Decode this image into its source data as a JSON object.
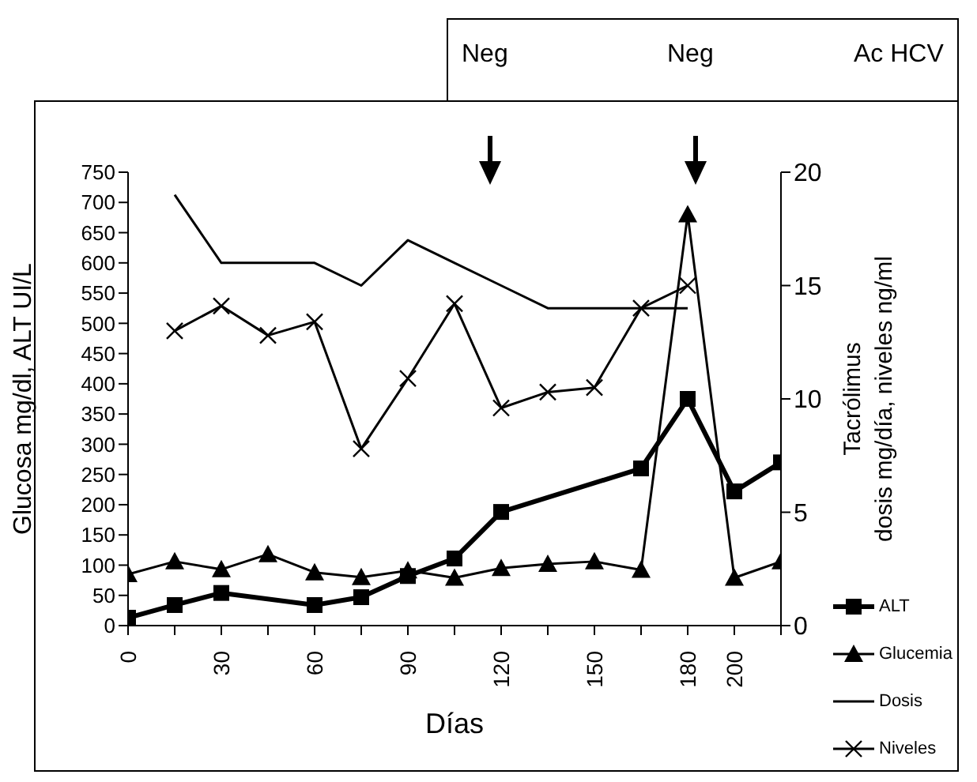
{
  "chart_data": {
    "type": "line",
    "xlabel": "Días",
    "ylabel": "Glucosa mg/dl, ALT UI/L",
    "y2label": "Tacrólimus\ndosis mg/día, niveles ng/ml",
    "categories": [
      "0",
      null,
      "30",
      null,
      "60",
      null,
      "90",
      null,
      "120",
      null,
      "150",
      null,
      "180",
      "200",
      null
    ],
    "series": [
      {
        "name": "ALT",
        "color": "#000000",
        "marker": "square",
        "values": [
          13,
          34,
          54,
          null,
          34,
          47,
          82,
          111,
          188,
          null,
          null,
          260,
          375,
          222,
          270
        ]
      },
      {
        "name": "Glucemia",
        "color": "#000000",
        "marker": "triangle",
        "values": [
          85,
          106,
          93,
          118,
          88,
          80,
          91,
          79,
          95,
          102,
          106,
          92,
          680,
          79,
          106
        ]
      },
      {
        "name": "Dosis",
        "color": "#000000",
        "marker": "none",
        "axis": "y2",
        "values": [
          null,
          19,
          16,
          16,
          16,
          15,
          17,
          16,
          15,
          14,
          14,
          14,
          14,
          null,
          null
        ]
      },
      {
        "name": "Niveles",
        "color": "#000000",
        "marker": "cross",
        "axis": "y2",
        "values": [
          null,
          13,
          14.1,
          12.8,
          13.4,
          7.8,
          10.9,
          14.2,
          9.6,
          10.3,
          10.5,
          14,
          15,
          null,
          null
        ]
      }
    ],
    "ylim": [
      0,
      750
    ],
    "yticks": [
      0,
      50,
      100,
      150,
      200,
      250,
      300,
      350,
      400,
      450,
      500,
      550,
      600,
      650,
      700,
      750
    ],
    "y2lim": [
      0,
      20
    ],
    "y2ticks": [
      0,
      5,
      10,
      15,
      20
    ],
    "annotations": [
      "Neg",
      "Neg",
      "Ac HCV"
    ],
    "grid": false,
    "legend": "bottom right"
  }
}
